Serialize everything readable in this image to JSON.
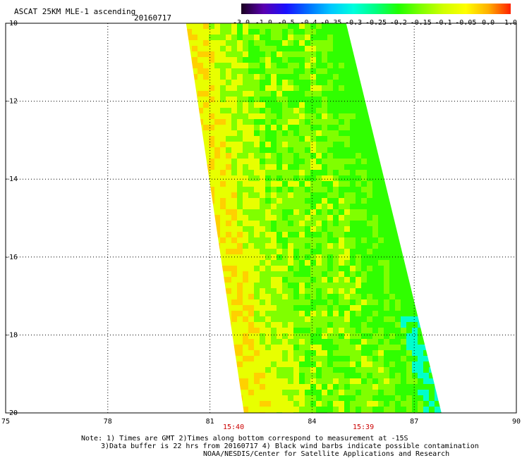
{
  "title": "ASCAT 25KM MLE-1 ascending",
  "date": "20160717",
  "colorbar": {
    "labels": [
      "-3.0",
      "-1.0",
      "-0.5",
      "-0.4",
      "-0.35",
      "-0.3",
      "-0.25",
      "-0.2",
      "-0.15",
      "-0.1",
      "-0.05",
      "0.0",
      "1.0"
    ],
    "colors": [
      "#1a0020",
      "#5a00b0",
      "#1a10ff",
      "#0070ff",
      "#00c8ff",
      "#00ffdd",
      "#00ff80",
      "#20ff00",
      "#80ff00",
      "#d0ff00",
      "#ffff00",
      "#ffb000",
      "#ff2000"
    ]
  },
  "axes": {
    "x_ticks": [
      "75",
      "78",
      "81",
      "84",
      "87",
      "90"
    ],
    "y_ticks": [
      "-10",
      "-12",
      "-14",
      "-16",
      "-18",
      "-20"
    ],
    "lon_range": [
      75,
      90
    ],
    "lat_range": [
      -20,
      -10
    ]
  },
  "times": [
    "15:40",
    "15:39"
  ],
  "notes": {
    "line1": "Note: 1) Times are GMT 2)Times along bottom correspond to measurement at -15S",
    "line2": "3)Data buffer is 22 hrs from 20160717 4) Black wind barbs indicate possible contamination",
    "line3": "NOAA/NESDIS/Center for Satellite Applications and Research"
  },
  "swath_colors": {
    "yellow": "#e8ff00",
    "orange": "#ffd000",
    "lime": "#80ff00",
    "green": "#30ff00",
    "cyan": "#00ffcc"
  }
}
